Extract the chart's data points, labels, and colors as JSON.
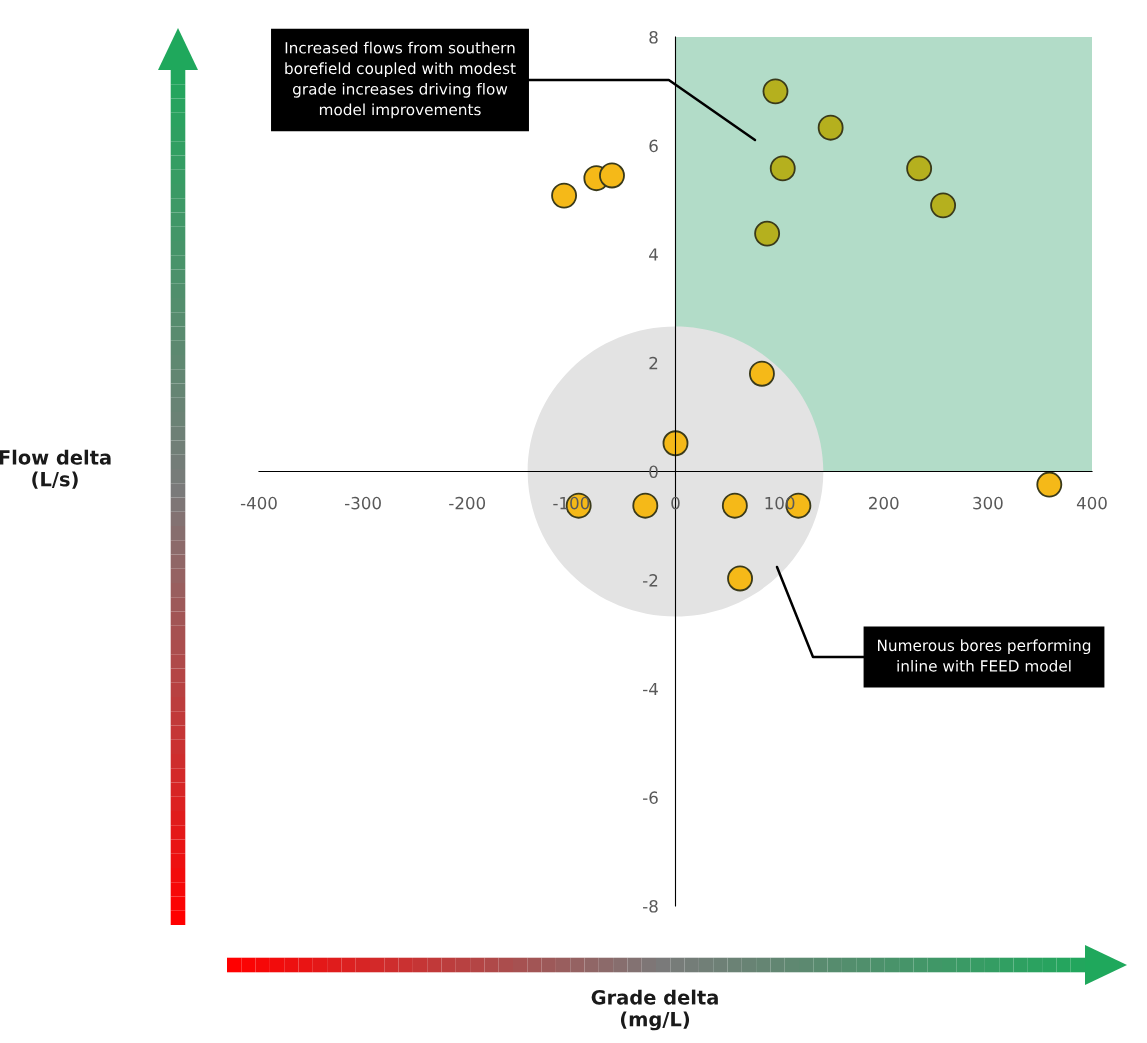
{
  "chart_data": {
    "type": "scatter",
    "xlabel": "Grade delta\n(mg/L)",
    "xlim": [
      -400,
      400
    ],
    "xticks": [
      -400,
      -300,
      -200,
      -100,
      0,
      100,
      200,
      300,
      400
    ],
    "ylim": [
      -8,
      8
    ],
    "yticks": [
      -8,
      -6,
      -4,
      -2,
      0,
      2,
      4,
      6,
      8
    ],
    "grid": false,
    "legend": false,
    "series": [
      {
        "type": "area",
        "color": "#b2dcc8",
        "x": [
          0,
          400
        ],
        "values": [
          8,
          8
        ]
      },
      {
        "color": "#b5b01e",
        "marker": "circle",
        "x": [
          96,
          149,
          103,
          234,
          257,
          88
        ],
        "values": [
          7.0,
          6.33,
          5.58,
          5.58,
          4.9,
          4.38
        ]
      },
      {
        "color": "#f5b918",
        "marker": "circle",
        "x": [
          -107,
          -76,
          -61,
          83,
          0,
          359,
          -93,
          -29,
          57,
          118,
          62
        ],
        "values": [
          5.08,
          5.4,
          5.45,
          1.8,
          0.52,
          -0.24,
          -0.63,
          -0.63,
          -0.63,
          -0.63,
          -1.97
        ]
      }
    ],
    "annotations": [
      "Increased flows from southern\nborefield coupled with modest\ngrade increases driving flow\nmodel improvements",
      "Numerous bores performing\ninline with FEED model",
      "Flow delta\n(L/s)"
    ]
  }
}
